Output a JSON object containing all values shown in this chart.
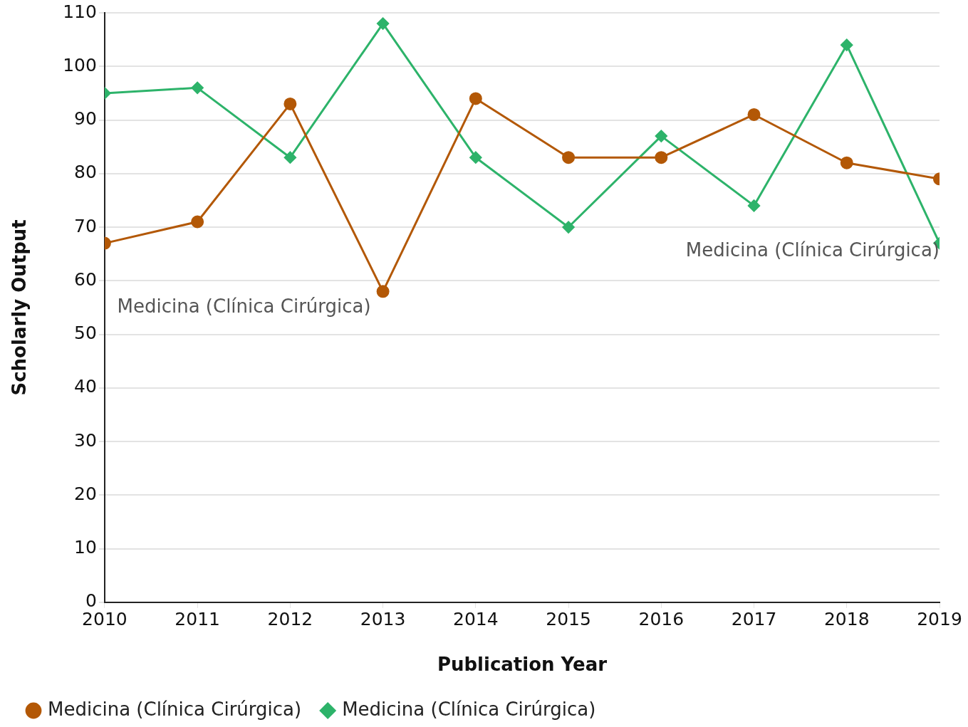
{
  "chart_data": {
    "type": "line",
    "xlabel": "Publication Year",
    "ylabel": "Scholarly Output",
    "x": [
      2010,
      2011,
      2012,
      2013,
      2014,
      2015,
      2016,
      2017,
      2018,
      2019
    ],
    "xlim": [
      2010,
      2019
    ],
    "xticks": [
      2010,
      2011,
      2012,
      2013,
      2014,
      2015,
      2016,
      2017,
      2018,
      2019
    ],
    "ylim": [
      0,
      110
    ],
    "yticks": [
      0,
      10,
      20,
      30,
      40,
      50,
      60,
      70,
      80,
      90,
      100,
      110
    ],
    "grid": "y",
    "legend": "bottom",
    "series": [
      {
        "name": "Medicina (Clínica Cirúrgica)",
        "color": "#b35806",
        "marker": "circle",
        "values": [
          67,
          71,
          93,
          58,
          94,
          83,
          83,
          91,
          82,
          79
        ]
      },
      {
        "name": "Medicina (Clínica Cirúrgica)",
        "color": "#2db36a",
        "marker": "diamond",
        "values": [
          95,
          96,
          83,
          108,
          83,
          70,
          87,
          74,
          104,
          67
        ]
      }
    ],
    "annotations": [
      "Medicina (Clínica Cirúrgica)",
      "Medicina (Clínica Cirúrgica)"
    ]
  }
}
